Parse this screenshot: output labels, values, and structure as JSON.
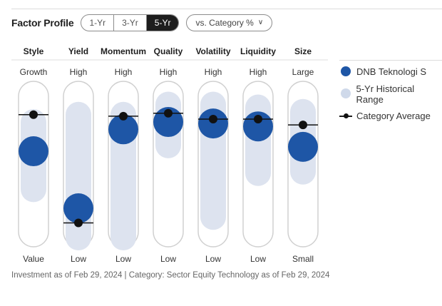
{
  "header": {
    "title": "Factor Profile",
    "periods": [
      "1-Yr",
      "3-Yr",
      "5-Yr"
    ],
    "active_period": "5-Yr",
    "compare_label": "vs. Category %"
  },
  "legend": {
    "fund": "DNB Teknologi S",
    "range": "5-Yr Historical Range",
    "category": "Category Average"
  },
  "colors": {
    "fund": "#1e56a6",
    "range": "#dde3ef",
    "category": "#111111",
    "track_border": "#d0d0d0"
  },
  "chart_data": {
    "type": "factor-profile",
    "title": "Factor Profile",
    "scale": [
      0,
      100
    ],
    "factors": [
      {
        "name": "Style",
        "top": "Growth",
        "bottom": "Value",
        "fund": 59,
        "range": [
          33,
          79
        ],
        "category": 84
      },
      {
        "name": "Yield",
        "top": "High",
        "bottom": "Low",
        "fund": 20,
        "range": [
          0,
          84
        ],
        "category": 10
      },
      {
        "name": "Momentum",
        "top": "High",
        "bottom": "Low",
        "fund": 74,
        "range": [
          0,
          84
        ],
        "category": 83
      },
      {
        "name": "Quality",
        "top": "High",
        "bottom": "Low",
        "fund": 79,
        "range": [
          63,
          91
        ],
        "category": 85
      },
      {
        "name": "Volatility",
        "top": "High",
        "bottom": "Low",
        "fund": 78,
        "range": [
          14,
          91
        ],
        "category": 81
      },
      {
        "name": "Liquidity",
        "top": "High",
        "bottom": "Low",
        "fund": 76,
        "range": [
          44,
          89
        ],
        "category": 81
      },
      {
        "name": "Size",
        "top": "Large",
        "bottom": "Small",
        "fund": 62,
        "range": [
          45,
          86
        ],
        "category": 77
      }
    ]
  },
  "footer": "Investment as of Feb 29, 2024 | Category: Sector Equity Technology as of Feb 29, 2024"
}
